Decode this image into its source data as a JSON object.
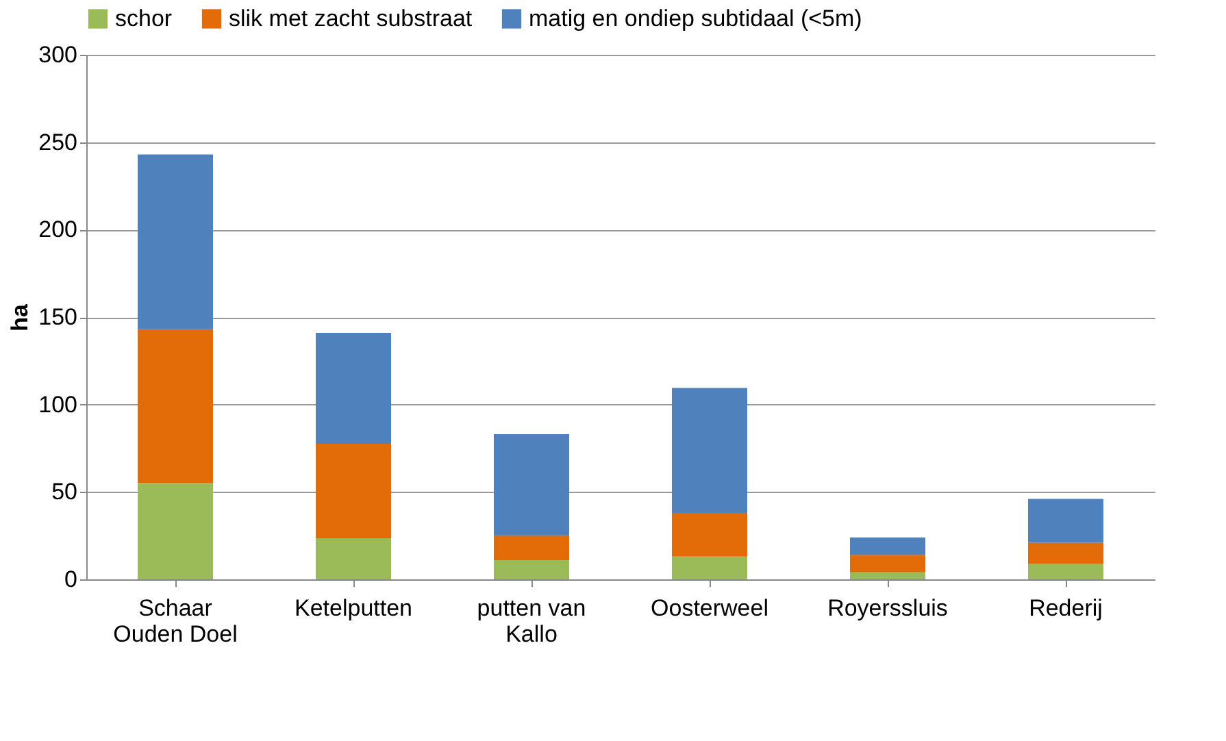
{
  "chart_data": {
    "type": "bar",
    "stacked": true,
    "ylabel": "ha",
    "categories": [
      "Schaar\nOuden Doel",
      "Ketelputten",
      "putten van\nKallo",
      "Oosterweel",
      "Royerssluis",
      "Rederij"
    ],
    "series": [
      {
        "name": "schor",
        "color": "#9bbb59",
        "values": [
          55,
          23.5,
          11,
          13,
          4,
          9
        ]
      },
      {
        "name": "slik met zacht substraat",
        "color": "#e36c09",
        "values": [
          88,
          54,
          14,
          25,
          10,
          12
        ]
      },
      {
        "name": "matig en ondiep subtidaal (<5m)",
        "color": "#4f81bd",
        "values": [
          100,
          63.5,
          58,
          71.5,
          10,
          25
        ]
      }
    ],
    "ylim": [
      0,
      300
    ],
    "yticks": [
      0,
      50,
      100,
      150,
      200,
      250,
      300
    ],
    "grid": "y",
    "legend": "top"
  }
}
